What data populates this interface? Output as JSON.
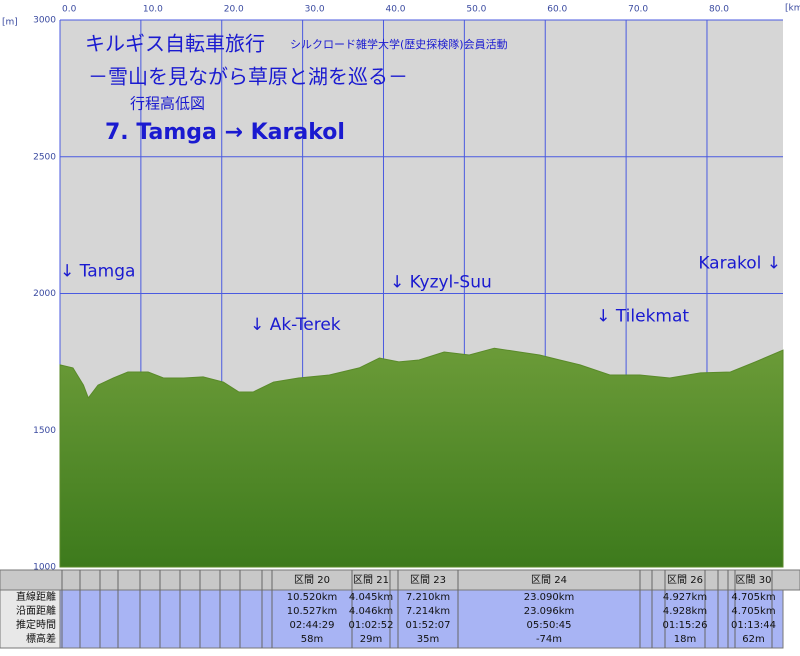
{
  "chart_data": {
    "type": "area",
    "title": "キルギス自転車旅行",
    "subtitle": "シルクロード雑学大学(歴史探検隊)会員活動",
    "tagline": "－雪山を見ながら草原と湖を巡る－",
    "chart_name": "行程高低図",
    "route": "7. Tamga → Karakol",
    "y_unit": "[m]",
    "x_unit": "[km]",
    "color": "#6b9b38",
    "grid": true,
    "xlim": [
      0,
      89.4
    ],
    "ylim": [
      1000,
      3000
    ],
    "xticks": [
      {
        "value": 0,
        "label": "0.0"
      },
      {
        "value": 10,
        "label": "10.0"
      },
      {
        "value": 20,
        "label": "20.0"
      },
      {
        "value": 30,
        "label": "30.0"
      },
      {
        "value": 40,
        "label": "40.0"
      },
      {
        "value": 50,
        "label": "50.0"
      },
      {
        "value": 60,
        "label": "60.0"
      },
      {
        "value": 70,
        "label": "70.0"
      },
      {
        "value": 80,
        "label": "80.0"
      }
    ],
    "yticks": [
      1000,
      1500,
      2000,
      2500,
      3000
    ],
    "x": [
      0,
      1.6,
      2.9,
      3.5,
      4.7,
      6.6,
      8.4,
      10.9,
      12.8,
      15.3,
      17.7,
      20.2,
      22.1,
      23.9,
      26.4,
      29.5,
      33.3,
      37.0,
      39.5,
      41.9,
      44.4,
      47.5,
      50.6,
      53.7,
      56.8,
      59.3,
      61.8,
      64.3,
      68.0,
      71.7,
      75.4,
      79.2,
      82.9,
      86.0,
      89.4
    ],
    "values": [
      1739,
      1728,
      1665,
      1618,
      1665,
      1691,
      1713,
      1713,
      1691,
      1691,
      1695,
      1676,
      1640,
      1640,
      1676,
      1691,
      1702,
      1728,
      1764,
      1750,
      1757,
      1786,
      1775,
      1800,
      1786,
      1775,
      1757,
      1739,
      1702,
      1702,
      1691,
      1710,
      1713,
      1750,
      1793
    ],
    "annotations": [
      {
        "text": "↓ Tamga",
        "x": 0,
        "y": 2080
      },
      {
        "text": "↓ Ak-Terek",
        "x": 23.5,
        "y": 1885
      },
      {
        "text": "↓ Kyzyl-Suu",
        "x": 40.8,
        "y": 2040
      },
      {
        "text": "↓ Tilekmat",
        "x": 66.3,
        "y": 1915
      },
      {
        "text": "Karakol ↓",
        "x": 89.4,
        "y": 2110
      }
    ]
  },
  "table": {
    "row_labels": [
      "直線距離",
      "沿面距離",
      "推定時間",
      "標高差"
    ],
    "columns": [
      {
        "header": "区間 20",
        "cells": [
          "10.520km",
          "10.527km",
          "02:44:29",
          "58m"
        ]
      },
      {
        "header": "区間 21",
        "cells": [
          "4.045km",
          "4.046km",
          "01:02:52",
          "29m"
        ]
      },
      {
        "header": "区間 23",
        "cells": [
          "7.210km",
          "7.214km",
          "01:52:07",
          "35m"
        ]
      },
      {
        "header": "区間 24",
        "cells": [
          "23.090km",
          "23.096km",
          "05:50:45",
          "-74m"
        ]
      },
      {
        "header": "区間 26",
        "cells": [
          "4.927km",
          "4.928km",
          "01:15:26",
          "18m"
        ]
      },
      {
        "header": "区間 30",
        "cells": [
          "4.705km",
          "4.705km",
          "01:13:44",
          "62m"
        ]
      }
    ]
  }
}
